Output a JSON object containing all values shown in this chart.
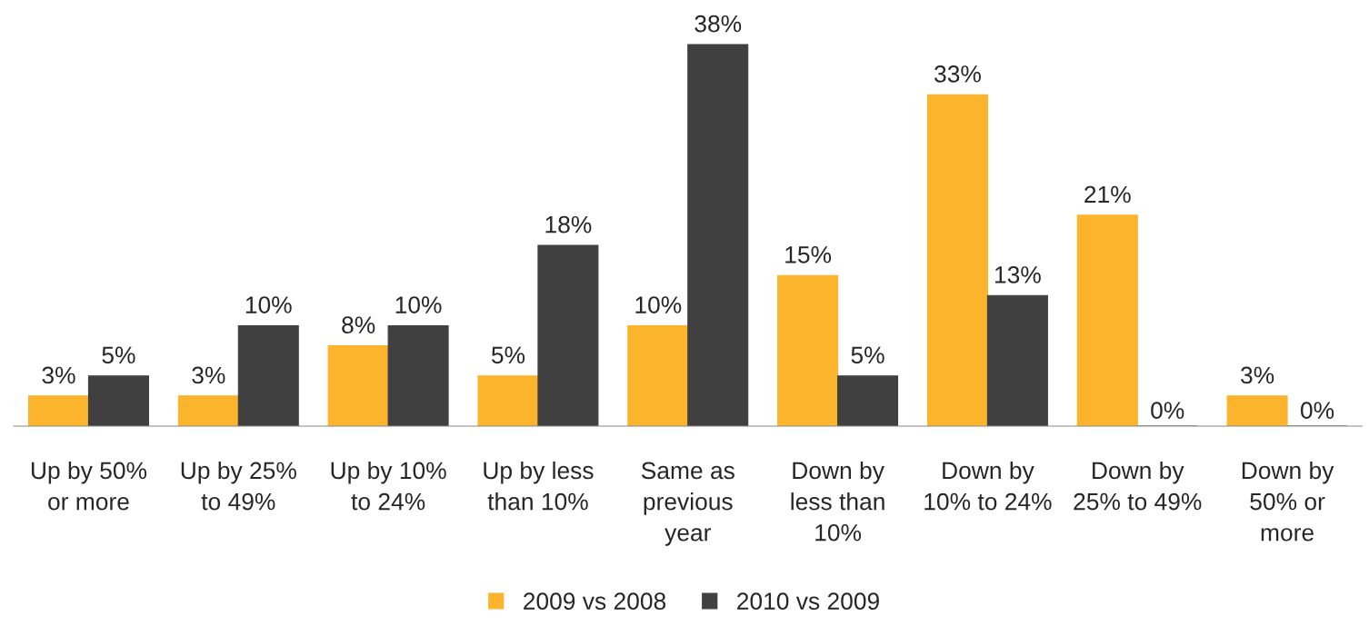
{
  "chart_data": {
    "type": "bar",
    "categories": [
      "Up by 50%\nor more",
      "Up by 25%\nto 49%",
      "Up by 10%\nto 24%",
      "Up by less\nthan 10%",
      "Same as\nprevious\nyear",
      "Down by\nless than\n10%",
      "Down by\n10% to 24%",
      "Down by\n25% to 49%",
      "Down by\n50% or\nmore"
    ],
    "series": [
      {
        "name": "2009 vs 2008",
        "color": "#fbb42c",
        "values": [
          3,
          3,
          8,
          5,
          10,
          15,
          33,
          21,
          3
        ],
        "value_labels": [
          "3%",
          "3%",
          "8%",
          "5%",
          "10%",
          "15%",
          "33%",
          "21%",
          "3%"
        ]
      },
      {
        "name": "2010 vs 2009",
        "color": "#404040",
        "values": [
          5,
          10,
          10,
          18,
          38,
          5,
          13,
          0,
          0
        ],
        "value_labels": [
          "5%",
          "10%",
          "10%",
          "18%",
          "38%",
          "5%",
          "13%",
          "0%",
          "0%"
        ]
      }
    ],
    "grid": false,
    "legend": "bottom"
  }
}
